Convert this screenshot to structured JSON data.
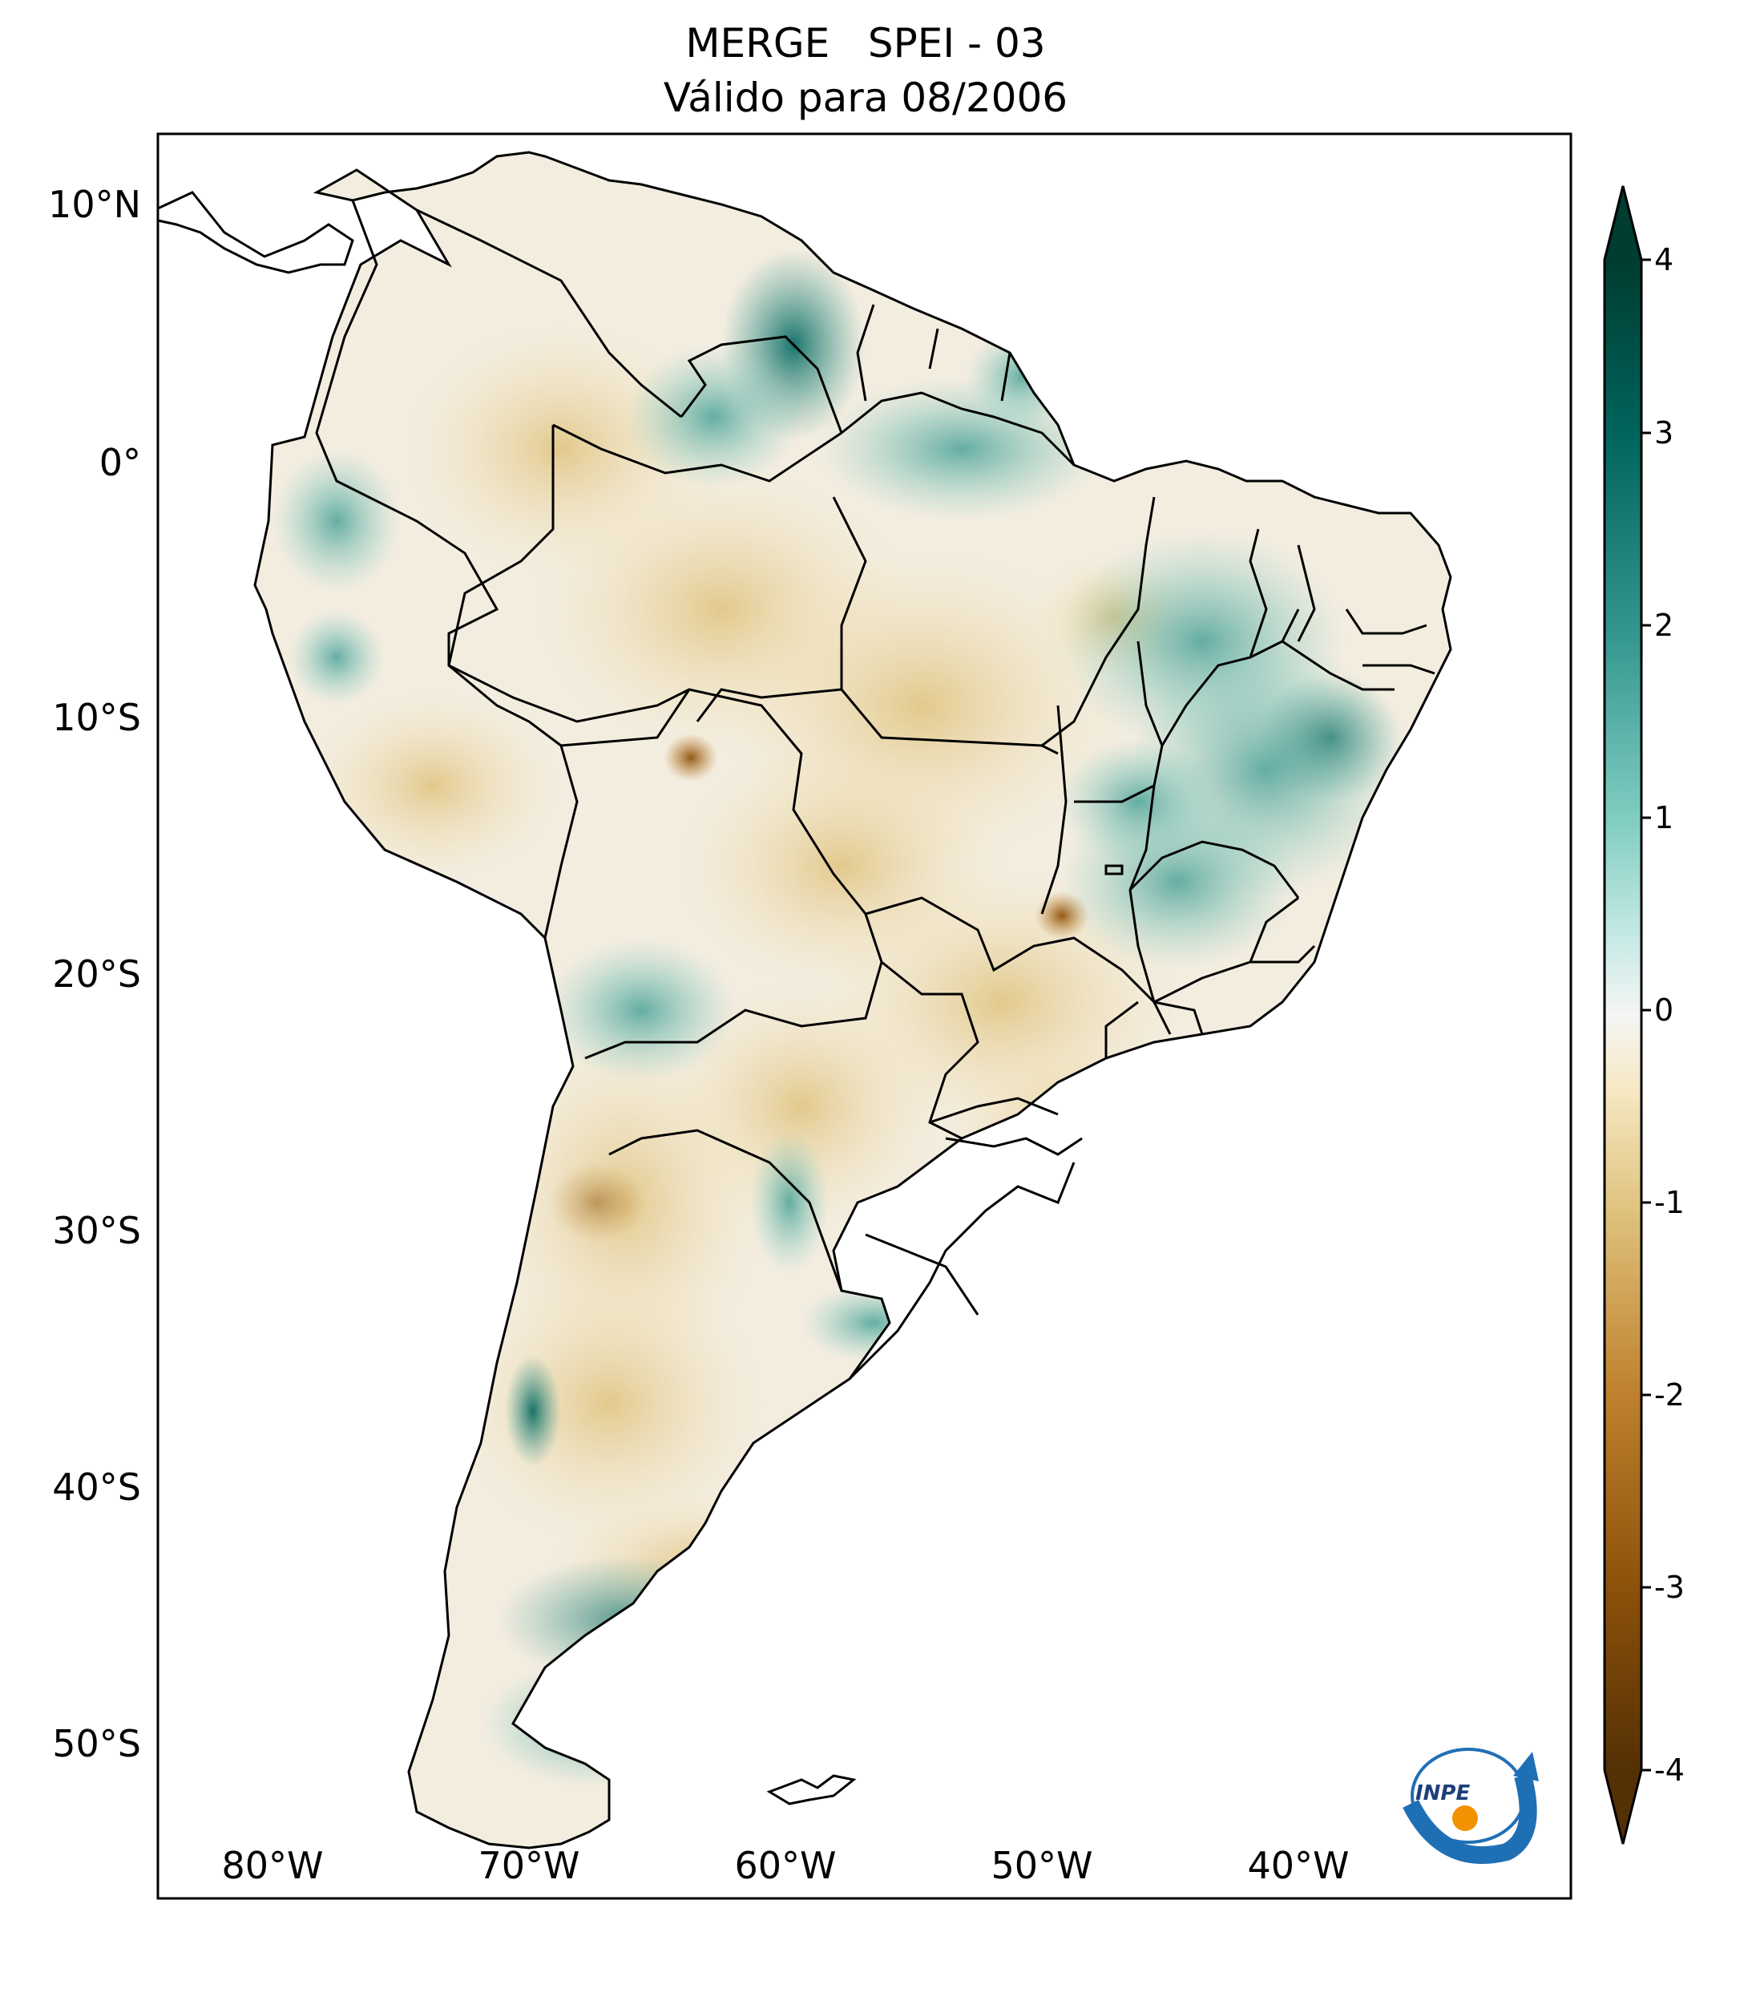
{
  "title": {
    "line1": "MERGE   SPEI - 03",
    "line2": "Válido para 08/2006"
  },
  "map": {
    "projection": "plate-carree",
    "lon_range": [
      -85,
      -30
    ],
    "lat_range": [
      -56,
      13
    ],
    "lat_labels": [
      {
        "value": 10,
        "text": "10°N"
      },
      {
        "value": 0,
        "text": "0°"
      },
      {
        "value": -10,
        "text": "10°S"
      },
      {
        "value": -20,
        "text": "20°S"
      },
      {
        "value": -30,
        "text": "30°S"
      },
      {
        "value": -40,
        "text": "40°S"
      },
      {
        "value": -50,
        "text": "50°S"
      }
    ],
    "lon_labels": [
      {
        "value": -80,
        "text": "80°W"
      },
      {
        "value": -70,
        "text": "70°W"
      },
      {
        "value": -60,
        "text": "60°W"
      },
      {
        "value": -50,
        "text": "50°W"
      },
      {
        "value": -40,
        "text": "40°W"
      }
    ]
  },
  "colorbar": {
    "range": [
      -4,
      4
    ],
    "ticks": [
      "4",
      "3",
      "2",
      "1",
      "0",
      "-1",
      "-2",
      "-3",
      "-4"
    ],
    "colormap": "BrBG",
    "colors": {
      "dry": "#543005",
      "neutral": "#f5f5f5",
      "wet": "#003c30"
    }
  },
  "logo": {
    "text": "INPE",
    "colors": {
      "blue": "#1f6fb5",
      "orange": "#f39200"
    }
  }
}
